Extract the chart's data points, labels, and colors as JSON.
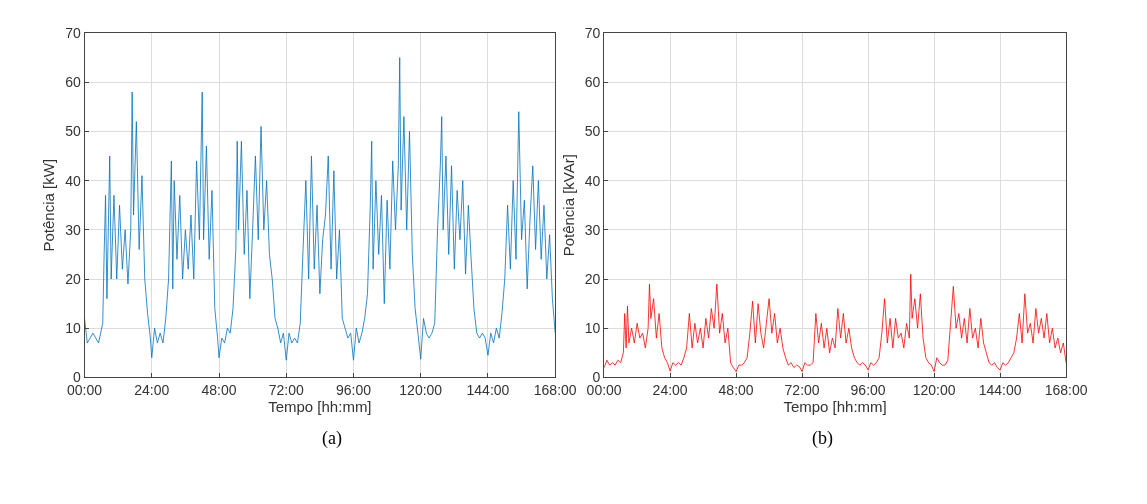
{
  "chart_data": [
    {
      "type": "line",
      "xlabel": "Tempo [hh:mm]",
      "ylabel": "Potência [kW]",
      "annotations": [
        "(a)"
      ],
      "grid": true,
      "xlim": [
        0,
        168
      ],
      "xticks": [
        {
          "value": 0,
          "label": "00:00"
        },
        {
          "value": 24,
          "label": "24:00"
        },
        {
          "value": 48,
          "label": "48:00"
        },
        {
          "value": 72,
          "label": "72:00"
        },
        {
          "value": 96,
          "label": "96:00"
        },
        {
          "value": 120,
          "label": "120:00"
        },
        {
          "value": 144,
          "label": "144:00"
        },
        {
          "value": 168,
          "label": "168:00"
        }
      ],
      "ylim": [
        0,
        70
      ],
      "yticks": [
        0,
        10,
        20,
        30,
        40,
        50,
        60,
        70
      ],
      "series": [
        {
          "color": "#0072bd",
          "x": [
            0,
            1,
            3,
            5,
            6.5,
            7,
            7.5,
            8,
            9,
            9.5,
            10.5,
            11.5,
            12.5,
            13.5,
            14.5,
            15.5,
            16.5,
            17,
            17.5,
            18.5,
            19.5,
            20.5,
            21.5,
            22.5,
            23.5,
            24,
            25,
            26,
            27,
            28,
            29,
            30,
            31,
            31.5,
            32,
            33,
            34,
            35,
            36,
            37,
            38,
            39,
            40,
            41,
            42,
            42.5,
            43.5,
            44.5,
            45.5,
            46.5,
            47.5,
            48,
            49,
            50,
            51,
            52,
            53,
            54,
            54.5,
            55,
            56,
            57,
            58,
            59,
            60,
            61,
            62,
            63,
            64,
            65,
            66,
            67,
            68,
            69,
            70,
            71,
            72,
            73,
            74,
            75,
            76,
            77,
            78,
            79,
            80,
            81,
            82,
            83,
            84,
            85,
            86,
            87,
            88,
            89,
            90,
            91,
            92,
            93,
            94,
            95,
            96,
            97,
            98,
            99,
            100,
            101,
            102,
            102.5,
            103,
            104,
            105,
            106,
            107,
            108,
            109,
            110,
            111,
            112,
            112.5,
            113,
            114,
            115,
            116,
            117,
            118,
            119,
            120,
            121,
            122,
            123,
            124,
            125,
            126,
            127,
            127.5,
            128,
            129,
            130,
            131,
            132,
            133,
            134,
            135,
            136,
            137,
            138,
            139,
            140,
            141,
            142,
            143,
            144,
            145,
            146,
            147,
            148,
            149,
            150,
            151,
            152,
            153,
            154,
            155,
            156,
            157,
            158,
            159,
            160,
            161,
            162,
            163,
            164,
            165,
            166,
            167,
            168
          ],
          "values": [
            12,
            7,
            9,
            7,
            11,
            25,
            37,
            16,
            45,
            20,
            37,
            20,
            35,
            22,
            30,
            19,
            30,
            58,
            33,
            52,
            26,
            41,
            20,
            13,
            8,
            4,
            10,
            7,
            9,
            7,
            12,
            20,
            44,
            18,
            40,
            24,
            37,
            20,
            30,
            22,
            33,
            20,
            44,
            28,
            58,
            28,
            47,
            24,
            38,
            14,
            8,
            4,
            8,
            7,
            10,
            9,
            14,
            26,
            48,
            30,
            48,
            25,
            38,
            16,
            30,
            45,
            28,
            51,
            30,
            40,
            25,
            20,
            12,
            10,
            7,
            9,
            3.5,
            9,
            7,
            8,
            7,
            11,
            26,
            40,
            20,
            45,
            22,
            35,
            17,
            28,
            33,
            45,
            22,
            42,
            20,
            30,
            12,
            10,
            8,
            9,
            3.5,
            10,
            7,
            9,
            12,
            17,
            35,
            48,
            22,
            40,
            25,
            37,
            15,
            36,
            22,
            44,
            30,
            43,
            65,
            34,
            53,
            30,
            50,
            25,
            14,
            9,
            3.7,
            12,
            9,
            8,
            9,
            11,
            30,
            43,
            53,
            30,
            45,
            25,
            43,
            22,
            38,
            28,
            40,
            21,
            35,
            24,
            14,
            9,
            8,
            9,
            8,
            4.5,
            9,
            7,
            10,
            8,
            13,
            20,
            35,
            22,
            40,
            24,
            54,
            28,
            36,
            18,
            32,
            43,
            26,
            40,
            24,
            35,
            20,
            29,
            16,
            9
          ]
        }
      ]
    },
    {
      "type": "line",
      "xlabel": "Tempo [hh:mm]",
      "ylabel": "Potência [kVAr]",
      "annotations": [
        "(b)"
      ],
      "grid": true,
      "xlim": [
        0,
        168
      ],
      "xticks": [
        {
          "value": 0,
          "label": "00:00"
        },
        {
          "value": 24,
          "label": "24:00"
        },
        {
          "value": 48,
          "label": "48:00"
        },
        {
          "value": 72,
          "label": "72:00"
        },
        {
          "value": 96,
          "label": "96:00"
        },
        {
          "value": 120,
          "label": "120:00"
        },
        {
          "value": 144,
          "label": "144:00"
        },
        {
          "value": 168,
          "label": "168:00"
        }
      ],
      "ylim": [
        0,
        70
      ],
      "yticks": [
        0,
        10,
        20,
        30,
        40,
        50,
        60,
        70
      ],
      "series": [
        {
          "color": "#ff0000",
          "x": [
            0,
            1,
            2,
            3,
            4,
            5,
            6,
            7,
            7.5,
            8,
            8.5,
            9,
            10,
            11,
            12,
            13,
            14,
            15,
            16,
            16.5,
            17,
            18,
            19,
            20,
            21,
            22,
            23,
            24,
            25,
            26,
            27,
            28,
            29,
            30,
            31,
            32,
            33,
            34,
            35,
            36,
            37,
            38,
            39,
            40,
            41,
            42,
            43,
            44,
            45,
            46,
            47,
            48,
            49,
            50,
            51,
            52,
            53,
            54,
            55,
            56,
            57,
            58,
            59,
            60,
            61,
            62,
            63,
            64,
            65,
            66,
            67,
            68,
            69,
            70,
            71,
            72,
            73,
            74,
            75,
            76,
            77,
            78,
            79,
            80,
            81,
            82,
            83,
            84,
            85,
            86,
            87,
            88,
            89,
            90,
            91,
            92,
            93,
            94,
            95,
            96,
            97,
            98,
            99,
            100,
            101,
            102,
            103,
            104,
            105,
            106,
            107,
            108,
            109,
            110,
            111,
            111.5,
            112,
            113,
            114,
            115,
            116,
            117,
            118,
            119,
            120,
            121,
            122,
            123,
            124,
            125,
            126,
            127,
            128,
            129,
            130,
            131,
            132,
            133,
            134,
            135,
            136,
            137,
            138,
            139,
            140,
            141,
            142,
            143,
            144,
            145,
            146,
            147,
            148,
            149,
            150,
            151,
            152,
            153,
            154,
            155,
            156,
            157,
            158,
            159,
            160,
            161,
            162,
            163,
            164,
            165,
            166,
            167,
            168
          ],
          "values": [
            2,
            3.5,
            2.5,
            3,
            2.5,
            3.5,
            3,
            5,
            13,
            6,
            14.5,
            7,
            10,
            7,
            11,
            8,
            9,
            6,
            10,
            19,
            12,
            16,
            8,
            13,
            6,
            4,
            3,
            1.3,
            3,
            2.5,
            3,
            2.5,
            4,
            6,
            13,
            6,
            11,
            7,
            10,
            6,
            12,
            8,
            14,
            10,
            19,
            9,
            13,
            7,
            10,
            3,
            2,
            1.2,
            2.5,
            2.5,
            3,
            4,
            9,
            15.5,
            7,
            15,
            9,
            6,
            11,
            16,
            9,
            13,
            7,
            10,
            6,
            4,
            2.5,
            3,
            2,
            2.5,
            2.2,
            1.2,
            3,
            2.5,
            2.5,
            3,
            13,
            7,
            11,
            6,
            10,
            5,
            8,
            6,
            14,
            8,
            13,
            7,
            10,
            6,
            4,
            3,
            2.5,
            3,
            2.5,
            1.5,
            3,
            2.5,
            3,
            4,
            9,
            16,
            7,
            12,
            6,
            12,
            8,
            9,
            6,
            11,
            8,
            21,
            12,
            16,
            10,
            17,
            8,
            4,
            3,
            2.5,
            1.2,
            4,
            3,
            2.5,
            2.5,
            3.5,
            11,
            18.5,
            10,
            13,
            8,
            12,
            7,
            14,
            8,
            10,
            6,
            12,
            7,
            5,
            3,
            2.5,
            3,
            2,
            1.5,
            3,
            2.5,
            3,
            4,
            5,
            8,
            13,
            7,
            17,
            9,
            11,
            7,
            14,
            9,
            12,
            8,
            13,
            7,
            10,
            6,
            8,
            5,
            7,
            3
          ]
        }
      ]
    }
  ]
}
